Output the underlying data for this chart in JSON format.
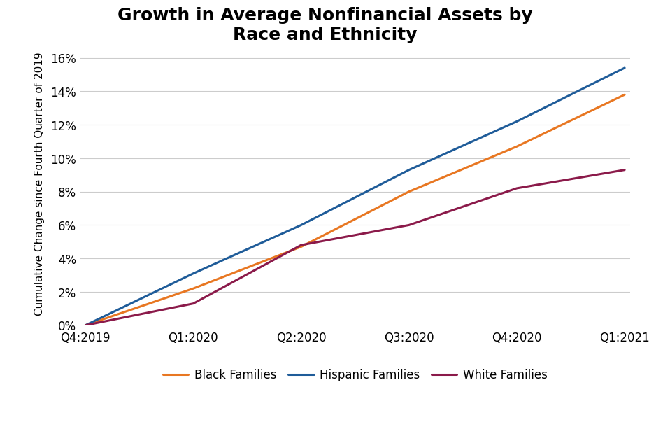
{
  "title": "Growth in Average Nonfinancial Assets by\nRace and Ethnicity",
  "ylabel": "Cumulative Change since Fourth Quarter of 2019",
  "x_labels": [
    "Q4:2019",
    "Q1:2020",
    "Q2:2020",
    "Q3:2020",
    "Q4:2020",
    "Q1:2021"
  ],
  "x_values": [
    0,
    1,
    2,
    3,
    4,
    5
  ],
  "series": {
    "Black Families": {
      "color": "#E87722",
      "values": [
        0.0,
        0.022,
        0.047,
        0.08,
        0.107,
        0.138
      ]
    },
    "Hispanic Families": {
      "color": "#1F5C99",
      "values": [
        0.0,
        0.031,
        0.06,
        0.093,
        0.122,
        0.154
      ]
    },
    "White Families": {
      "color": "#8B1A4A",
      "values": [
        0.0,
        0.013,
        0.048,
        0.06,
        0.082,
        0.093
      ]
    }
  },
  "series_order": [
    "Black Families",
    "Hispanic Families",
    "White Families"
  ],
  "ylim": [
    0,
    0.17
  ],
  "yticks": [
    0,
    0.02,
    0.04,
    0.06,
    0.08,
    0.1,
    0.12,
    0.14,
    0.16
  ],
  "title_fontsize": 18,
  "axis_label_fontsize": 11,
  "tick_fontsize": 12,
  "legend_fontsize": 12,
  "footer_bg_color": "#1F3F5F",
  "footer_text_color": "#FFFFFF",
  "background_color": "#FFFFFF",
  "grid_color": "#CCCCCC",
  "line_width": 2.2
}
